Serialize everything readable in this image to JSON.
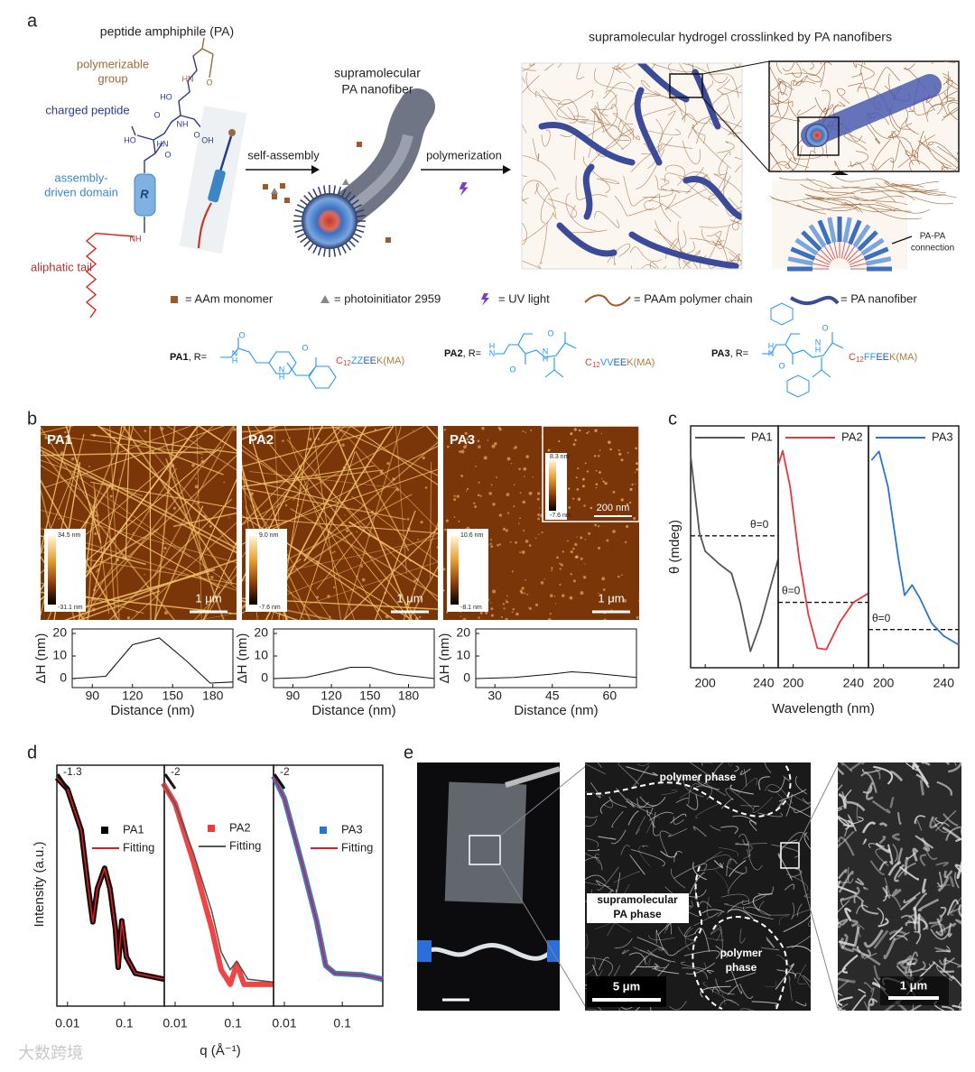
{
  "watermark": "大数跨境",
  "panel_a": {
    "label": "a",
    "pa_title": "peptide amphiphile (PA)",
    "labels": {
      "polymerizable": [
        "polymerizable",
        "group"
      ],
      "charged": [
        "charged peptide"
      ],
      "assembly": [
        "assembly-",
        "driven domain"
      ],
      "tail": [
        "aliphatic tail"
      ]
    },
    "r_label": "R",
    "atoms": [
      "O",
      "HN",
      "HO",
      "O",
      "NH",
      "HN",
      "OH",
      "HO",
      "O",
      "O",
      "NH"
    ],
    "self_assembly": "self-assembly",
    "nanofiber_title": [
      "supramolecular",
      "PA nanofiber"
    ],
    "polymerization": "polymerization",
    "hydrogel_title": "supramolecular hydrogel crosslinked by PA nanofibers",
    "connection": [
      "PA-PA",
      "connection"
    ],
    "legend": [
      "= AAm monomer",
      "= photoinitiator 2959",
      "= UV light",
      "= PAAm polymer chain",
      "= PA nanofiber"
    ],
    "variants": [
      {
        "name": "PA1",
        "suffix": ", R=",
        "atoms": [
          "O",
          "N",
          "H",
          "H",
          "N",
          "O"
        ],
        "sequence": [
          "C",
          "12",
          "ZZ",
          "EE",
          "K(MA)"
        ]
      },
      {
        "name": "PA2",
        "suffix": ", R=",
        "atoms": [
          "H",
          "N",
          "O",
          "N",
          "H",
          "O"
        ],
        "sequence": [
          "C",
          "12",
          "VV",
          "EE",
          "K(MA)"
        ]
      },
      {
        "name": "PA3",
        "suffix": ", R=",
        "atoms": [
          "H",
          "N",
          "O",
          "N",
          "H",
          "O"
        ],
        "sequence": [
          "C",
          "12",
          "FF",
          "EE",
          "K(MA)"
        ]
      }
    ]
  },
  "panel_b": {
    "label": "b",
    "images": [
      {
        "name": "PA1",
        "cmax": "34.5 nm",
        "cmin": "-31.1 nm",
        "scale": "1 μm"
      },
      {
        "name": "PA2",
        "cmax": "9.0 nm",
        "cmin": "-7.6 nm",
        "scale": "1 μm"
      },
      {
        "name": "PA3",
        "cmax": "10.6 nm",
        "cmin": "-8.1 nm",
        "scale": "1 μm"
      }
    ],
    "inset": {
      "cmax": "8.3 nm",
      "cmin": "-7.6 nm",
      "scale": "200 nm"
    },
    "profiles": [
      {
        "type": "line",
        "x": [
          75,
          100,
          120,
          140,
          160,
          178,
          195
        ],
        "values": [
          0,
          1,
          15,
          18,
          8,
          -2,
          -1.5
        ],
        "xlim": [
          75,
          195
        ],
        "xticks": [
          90,
          120,
          150,
          180
        ],
        "ylim": [
          -4,
          22
        ],
        "yticks": [
          0,
          10,
          20
        ],
        "x_label": "Distance (nm)",
        "y_label": "ΔH (nm)"
      },
      {
        "type": "line",
        "x": [
          75,
          100,
          120,
          135,
          150,
          170,
          200
        ],
        "values": [
          0,
          0.5,
          3,
          5,
          5,
          2,
          0
        ],
        "xlim": [
          75,
          200
        ],
        "xticks": [
          90,
          120,
          150,
          180
        ],
        "ylim": [
          -4,
          22
        ],
        "yticks": [
          0,
          10,
          20
        ],
        "x_label": "Distance (nm)",
        "y_label": "ΔH (nm)"
      },
      {
        "type": "line",
        "x": [
          25,
          35,
          45,
          50,
          55,
          67
        ],
        "values": [
          0,
          0.5,
          2,
          3,
          2.5,
          0.5
        ],
        "xlim": [
          25,
          67
        ],
        "xticks": [
          30,
          45,
          60
        ],
        "ylim": [
          -4,
          22
        ],
        "yticks": [
          0,
          10,
          20
        ],
        "x_label": "Distance (nm)",
        "y_label": "ΔH (nm)"
      }
    ]
  },
  "panel_c": {
    "label": "c",
    "type": "line",
    "y_label": "θ (mdeg)",
    "x_label": "Wavelength (nm)",
    "subplots": [
      {
        "name": "PA1",
        "color": "#555555",
        "x": [
          190,
          196,
          200,
          210,
          218,
          224,
          231,
          238,
          250
        ],
        "values": [
          0.73,
          0.03,
          -0.14,
          -0.26,
          -0.34,
          -0.61,
          -1.05,
          -0.79,
          -0.21
        ],
        "ylim": [
          -1.2,
          1.0
        ],
        "xlim": [
          190,
          250
        ],
        "xticks": [
          200,
          240
        ],
        "zero_label": "θ=0"
      },
      {
        "name": "PA2",
        "color": "#e0393e",
        "x": [
          190,
          193,
          198,
          204,
          210,
          216,
          222,
          231,
          240,
          250
        ],
        "values": [
          1.05,
          1.16,
          0.88,
          0.33,
          -0.09,
          -0.35,
          -0.36,
          -0.15,
          0,
          0.07
        ],
        "ylim": [
          -0.5,
          1.35
        ],
        "xlim": [
          190,
          250
        ],
        "xticks": [
          200,
          240
        ],
        "zero_label": "θ=0"
      },
      {
        "name": "PA3",
        "color": "#2a74d0",
        "x": [
          192,
          197,
          203,
          210,
          214,
          219,
          224,
          232,
          240,
          250
        ],
        "values": [
          1.33,
          1.4,
          1.12,
          0.55,
          0.27,
          0.35,
          0.25,
          0.05,
          -0.05,
          -0.12
        ],
        "ylim": [
          -0.3,
          1.6
        ],
        "xlim": [
          190,
          250
        ],
        "xticks": [
          200,
          240
        ],
        "zero_label": "θ=0"
      }
    ]
  },
  "panel_d": {
    "label": "d",
    "type": "line",
    "log_x": true,
    "log_y": true,
    "x_label": "q (Å⁻¹)",
    "y_label": "Intensity (a.u.)",
    "xlim": [
      0.0065,
      0.5
    ],
    "xticks": [
      0.01,
      0.1
    ],
    "ylim": [
      0.0001,
      1
    ],
    "subplots": [
      {
        "slope": "-1.3",
        "series": [
          {
            "name": "PA1",
            "color": "#000000",
            "x": [
              0.0065,
              0.01,
              0.0174,
              0.0232,
              0.0278,
              0.0334,
              0.0448,
              0.0557,
              0.0693,
              0.0774,
              0.0896,
              0.1076,
              0.155,
              0.5
            ],
            "values": [
              0.62,
              0.4,
              0.083,
              0.0089,
              0.0025,
              0.0089,
              0.0195,
              0.0089,
              0.0019,
              0.00044,
              0.0026,
              0.00066,
              0.00035,
              0.00028
            ]
          },
          {
            "name": "Fitting",
            "color": "#e41a1c",
            "x": [
              0.0065,
              0.01,
              0.0174,
              0.0232,
              0.0278,
              0.0334,
              0.0448,
              0.0557,
              0.0693,
              0.0774,
              0.0896,
              0.1076,
              0.155,
              0.5
            ],
            "values": [
              0.62,
              0.4,
              0.083,
              0.0089,
              0.0025,
              0.0089,
              0.0195,
              0.0089,
              0.0019,
              0.00044,
              0.0026,
              0.00066,
              0.00035,
              0.00028
            ]
          }
        ]
      },
      {
        "slope": "-2",
        "series": [
          {
            "name": "PA2",
            "color": "#ee3b3b",
            "x": [
              0.0062,
              0.01,
              0.0207,
              0.0431,
              0.0622,
              0.0896,
              0.1156,
              0.155,
              0.5
            ],
            "values": [
              0.5,
              0.23,
              0.025,
              0.0019,
              0.0004,
              0.00023,
              0.0005,
              0.00023,
              0.00023
            ]
          },
          {
            "name": "Fitting",
            "color": "#555555",
            "x": [
              0.0062,
              0.01,
              0.0207,
              0.0431,
              0.0622,
              0.0896,
              0.1156,
              0.18,
              0.5
            ],
            "values": [
              0.5,
              0.23,
              0.035,
              0.0037,
              0.0008,
              0.0004,
              0.00056,
              0.00028,
              0.00025
            ]
          }
        ]
      },
      {
        "slope": "-2",
        "series": [
          {
            "name": "PA3",
            "color": "#2a74d0",
            "x": [
              0.0065,
              0.01,
              0.0207,
              0.036,
              0.0518,
              0.0746,
              0.223,
              0.5
            ],
            "values": [
              0.66,
              0.28,
              0.021,
              0.0026,
              0.00047,
              0.00035,
              0.00033,
              0.00028
            ]
          },
          {
            "name": "Fitting",
            "color": "#e41a1c",
            "x": [
              0.0065,
              0.01,
              0.0207,
              0.036,
              0.0518,
              0.0746,
              0.223,
              0.5
            ],
            "values": [
              0.66,
              0.28,
              0.021,
              0.0026,
              0.00047,
              0.00035,
              0.00033,
              0.00028
            ]
          }
        ]
      }
    ]
  },
  "panel_e": {
    "label": "e",
    "polymer_phase_top": "polymer phase",
    "pa_phase": [
      "supramolecular",
      "PA phase"
    ],
    "polymer_phase_bottom": [
      "polymer",
      "phase"
    ],
    "scale_sem": "5 μm",
    "scale_zoom": "1 μm"
  }
}
